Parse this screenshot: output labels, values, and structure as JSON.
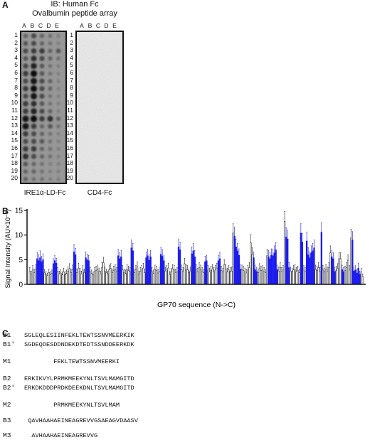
{
  "panel_a": {
    "letter": "A",
    "title_line1": "IB: Human Fc",
    "title_line2": "Ovalbumin peptide array",
    "columns": [
      "A",
      "B",
      "C",
      "D",
      "E"
    ],
    "rows": [
      "1",
      "2",
      "3",
      "4",
      "5",
      "6",
      "7",
      "8",
      "9",
      "10",
      "11",
      "12",
      "13",
      "14",
      "15",
      "16",
      "17",
      "18",
      "19",
      "20"
    ],
    "blot_left_caption": "IRE1α-LD-Fc",
    "blot_right_caption": "CD4-Fc"
  },
  "panel_b": {
    "letter": "B",
    "ylabel": "Signal Intensity (AU×10⁻³)",
    "xlabel": "GP70 sequence (N->C)"
  },
  "chart_data": {
    "type": "bar",
    "ylabel": "Signal Intensity (AU×10⁻³)",
    "xlabel": "GP70 sequence (N->C)",
    "ylim": [
      0,
      15
    ],
    "yticks": [
      0,
      5,
      10,
      15
    ],
    "colors": {
      "highlighted": "#1a1aee",
      "other": "#ffffff",
      "outline": "#222222"
    },
    "values": [
      2.6,
      2.1,
      2.9,
      2.4,
      3.1,
      5.2,
      4.8,
      5.4,
      4.6,
      5.0,
      2.3,
      2.0,
      1.8,
      2.4,
      2.0,
      2.2,
      4.2,
      4.8,
      4.3,
      2.6,
      2.1,
      2.3,
      1.9,
      2.5,
      2.0,
      2.2,
      2.7,
      3.2,
      2.4,
      3.0,
      6.6,
      6.0,
      2.4,
      3.3,
      2.5,
      2.1,
      2.9,
      2.4,
      5.4,
      5.0,
      4.8,
      2.6,
      2.2,
      1.9,
      2.6,
      2.8,
      3.0,
      2.5,
      2.1,
      3.4,
      4.4,
      2.7,
      2.4,
      2.1,
      3.0,
      3.2,
      2.4,
      2.8,
      3.1,
      2.6,
      5.8,
      5.2,
      5.6,
      2.9,
      2.4,
      2.2,
      3.1,
      2.8,
      2.6,
      7.4,
      6.8,
      2.4,
      2.9,
      3.5,
      2.1,
      2.6,
      2.9,
      3.3,
      2.4,
      5.4,
      5.8,
      4.9,
      5.6,
      2.6,
      2.2,
      3.0,
      2.8,
      2.3,
      2.7,
      6.1,
      5.7,
      4.8,
      2.7,
      2.9,
      3.3,
      2.0,
      2.5,
      3.1,
      2.9,
      2.4,
      2.6,
      7.6,
      7.0,
      3.0,
      2.6,
      4.2,
      3.1,
      2.9,
      2.4,
      2.7,
      6.2,
      6.8,
      5.6,
      3.1,
      2.5,
      3.4,
      3.0,
      2.6,
      2.4,
      4.6,
      4.8,
      2.9,
      2.5,
      2.8,
      3.1,
      2.6,
      2.9,
      3.3,
      4.8,
      5.2,
      2.8,
      2.5,
      4.0,
      3.1,
      2.5,
      2.9,
      2.6,
      2.7,
      10.4,
      9.8,
      7.6,
      6.8,
      5.9,
      3.1,
      3.0,
      2.8,
      2.5,
      2.3,
      2.9,
      3.4,
      8.4,
      6.0,
      5.4,
      3.0,
      2.6,
      2.4,
      3.2,
      2.8,
      2.9,
      2.6,
      2.4,
      5.8,
      5.6,
      5.2,
      5.9,
      5.8,
      6.4,
      7.0,
      3.0,
      2.7,
      3.4,
      2.6,
      2.9,
      12.8,
      9.6,
      9.2,
      3.4,
      2.7,
      2.5,
      2.9,
      3.1,
      2.6,
      2.8,
      2.4,
      10.4,
      8.6,
      2.9,
      2.6,
      8.8,
      6.0,
      5.4,
      6.4,
      6.8,
      7.4,
      3.0,
      2.8,
      3.4,
      2.6,
      10.6,
      2.9,
      2.5,
      3.1,
      2.7,
      3.4,
      6.4,
      5.6,
      5.2,
      2.6,
      2.8,
      3.2,
      5.2,
      5.2,
      3.0,
      2.6,
      2.8,
      3.4,
      4.9,
      2.9,
      9.4,
      9.0,
      2.7,
      2.9,
      2.3,
      3.3,
      2.1,
      2.5,
      1.6
    ],
    "highlighted": [
      5,
      6,
      7,
      8,
      9,
      16,
      17,
      18,
      30,
      31,
      38,
      39,
      40,
      60,
      61,
      62,
      69,
      70,
      79,
      80,
      81,
      82,
      89,
      90,
      91,
      101,
      102,
      110,
      111,
      112,
      119,
      120,
      128,
      129,
      139,
      140,
      141,
      142,
      143,
      152,
      153,
      154,
      162,
      163,
      164,
      165,
      166,
      167,
      168,
      174,
      175,
      176,
      184,
      185,
      188,
      189,
      190,
      191,
      192,
      193,
      198,
      205,
      206,
      207,
      212,
      213,
      219,
      220,
      221,
      222,
      223,
      224,
      231,
      232
    ],
    "errors": [
      0.8,
      0.6,
      0.9,
      0.7,
      0.9,
      1.3,
      1.2,
      1.4,
      1.1,
      1.2,
      0.7,
      0.6,
      0.5,
      0.7,
      0.6,
      0.7,
      1.0,
      1.1,
      1.0,
      0.8,
      0.6,
      0.7,
      0.6,
      0.8,
      0.6,
      0.7,
      0.8,
      1.0,
      0.7,
      0.9,
      1.5,
      1.3,
      0.7,
      1.0,
      0.8,
      0.6,
      0.9,
      0.7,
      1.2,
      1.1,
      1.1,
      0.8,
      0.7,
      0.6,
      0.8,
      0.9,
      0.9,
      0.8,
      0.6,
      1.0,
      1.1,
      0.8,
      0.7,
      0.6,
      0.9,
      1.0,
      0.7,
      0.9,
      0.9,
      0.8,
      1.3,
      1.2,
      1.3,
      0.9,
      0.7,
      0.7,
      0.9,
      0.9,
      0.8,
      1.6,
      1.5,
      0.7,
      0.9,
      1.1,
      0.6,
      0.8,
      0.9,
      1.0,
      0.7,
      1.2,
      1.3,
      1.1,
      1.3,
      0.8,
      0.7,
      0.9,
      0.9,
      0.7,
      0.8,
      1.4,
      1.3,
      1.1,
      0.8,
      0.9,
      1.0,
      0.6,
      0.8,
      0.9,
      0.9,
      0.7,
      0.8,
      1.6,
      1.5,
      0.9,
      0.8,
      1.1,
      0.9,
      0.9,
      0.7,
      0.8,
      1.4,
      1.5,
      1.3,
      0.9,
      0.8,
      1.0,
      0.9,
      0.8,
      0.7,
      1.1,
      1.1,
      0.9,
      0.8,
      0.9,
      0.9,
      0.8,
      0.9,
      1.0,
      1.1,
      1.2,
      0.9,
      0.8,
      1.0,
      0.9,
      0.8,
      0.9,
      0.8,
      0.8,
      1.9,
      1.8,
      1.6,
      1.5,
      1.3,
      0.9,
      0.9,
      0.9,
      0.8,
      0.7,
      0.9,
      1.0,
      1.7,
      1.4,
      1.2,
      0.9,
      0.8,
      0.7,
      1.0,
      0.9,
      0.9,
      0.8,
      0.7,
      1.3,
      1.3,
      1.2,
      1.3,
      1.3,
      1.4,
      1.5,
      0.9,
      0.8,
      1.0,
      0.8,
      0.9,
      2.0,
      1.9,
      1.8,
      1.0,
      0.8,
      0.8,
      0.9,
      0.9,
      0.8,
      0.9,
      0.7,
      1.9,
      1.7,
      0.9,
      0.8,
      1.8,
      1.4,
      1.2,
      1.4,
      1.5,
      1.6,
      0.9,
      0.9,
      1.0,
      0.8,
      1.9,
      0.9,
      0.8,
      0.9,
      0.8,
      1.0,
      1.4,
      1.3,
      1.2,
      0.8,
      0.9,
      1.0,
      1.2,
      1.2,
      0.9,
      0.8,
      0.9,
      1.0,
      1.1,
      0.9,
      1.8,
      1.7,
      0.8,
      0.9,
      0.7,
      1.0,
      0.6,
      0.8,
      0.5
    ]
  },
  "panel_c": {
    "letter": "C",
    "sequences": [
      {
        "label": "B1",
        "seq": "SGLEQLESIINFEKLTEWTSSNVMEERKIK"
      },
      {
        "label": "B1′",
        "seq": "SGDEQDESDDNDEKDTEDTSSNDDEERKDK"
      },
      {
        "label": "M1",
        "seq": "        FEKLTEWTSSNVMEERKI"
      },
      {
        "label": "B2",
        "seq": "ERKIKVYLPRMKMEEKYNLTSVLMAMGITD"
      },
      {
        "label": "B2′",
        "seq": "ERKDKDDDPRDKDEEKDNLTSVLMAMGITD"
      },
      {
        "label": "M2",
        "seq": "        PRMKMEEKYNLTSVLMAM"
      },
      {
        "label": "B3",
        "seq": " QAVHAAHAEINEAGREVVGSAEAGVDAASV"
      },
      {
        "label": "M3",
        "seq": "  AVHAAHAEINEAGREVVG"
      }
    ]
  }
}
